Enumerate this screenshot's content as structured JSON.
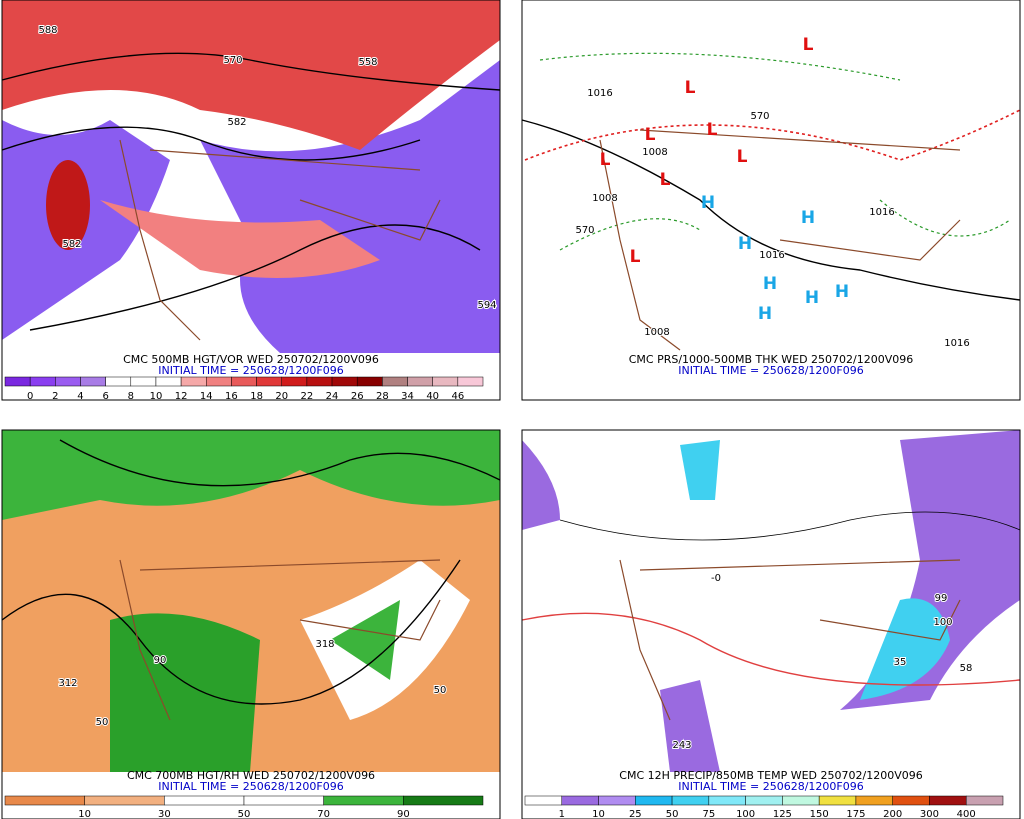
{
  "panels": [
    {
      "caption": "CMC 500MB HGT/VOR WED 250702/1200V096",
      "initial_time": "INITIAL TIME = 250628/1200F096",
      "colorbar": {
        "labels": [
          0,
          2,
          4,
          6,
          8,
          10,
          12,
          14,
          16,
          18,
          20,
          22,
          24,
          26,
          28,
          34,
          40,
          46
        ],
        "colors": [
          "#7a28e0",
          "#8a3ef0",
          "#9a5cf0",
          "#a87ce6",
          "#ffffff",
          "#ffffff",
          "#ffffff",
          "#f5a8a8",
          "#f08080",
          "#e85a5a",
          "#e03838",
          "#d01c1c",
          "#b81010",
          "#a00808",
          "#880000",
          "#b08080",
          "#d0a0a8",
          "#e8b8c0",
          "#f8c8d8"
        ]
      },
      "contour_labels": [
        "588",
        "570",
        "558",
        "582",
        "582",
        "594"
      ],
      "highs": [],
      "lows": []
    },
    {
      "caption": "CMC PRS/1000-500MB THK WED 250702/1200V096",
      "initial_time": "INITIAL TIME = 250628/1200F096",
      "contour_labels": [
        "1016",
        "1008",
        "570",
        "1008",
        "570",
        "1016",
        "1016",
        "1008",
        "1016"
      ],
      "highs": [
        "H",
        "H",
        "H",
        "H",
        "H",
        "H",
        "H"
      ],
      "lows": [
        "L",
        "L",
        "L",
        "L",
        "L",
        "L",
        "L",
        "L"
      ]
    },
    {
      "caption": "CMC 700MB HGT/RH WED 250702/1200V096",
      "initial_time": "INITIAL TIME = 250628/1200F096",
      "colorbar": {
        "labels": [
          10,
          30,
          50,
          70,
          90
        ],
        "colors": [
          "#e8894a",
          "#f2b080",
          "#ffffff",
          "#ffffff",
          "#3cb43c",
          "#167a16"
        ]
      },
      "contour_labels": [
        "312",
        "50",
        "90",
        "318",
        "50"
      ],
      "highs": [],
      "lows": []
    },
    {
      "caption": "CMC 12H PRECIP/850MB TEMP WED 250702/1200V096",
      "initial_time": "INITIAL TIME = 250628/1200F096",
      "colorbar": {
        "labels": [
          1,
          10,
          25,
          50,
          75,
          100,
          125,
          150,
          175,
          200,
          300,
          400
        ],
        "colors": [
          "#ffffff",
          "#9a6ae0",
          "#b08cf0",
          "#20b8f0",
          "#40d0f0",
          "#80e8f8",
          "#a0f0f0",
          "#c0f8e0",
          "#f0e040",
          "#f0a020",
          "#e05010",
          "#a01010",
          "#c8a0b0"
        ]
      },
      "contour_labels": [
        "243",
        "99",
        "100",
        "58",
        "35",
        "-0"
      ],
      "highs": [],
      "lows": []
    }
  ]
}
